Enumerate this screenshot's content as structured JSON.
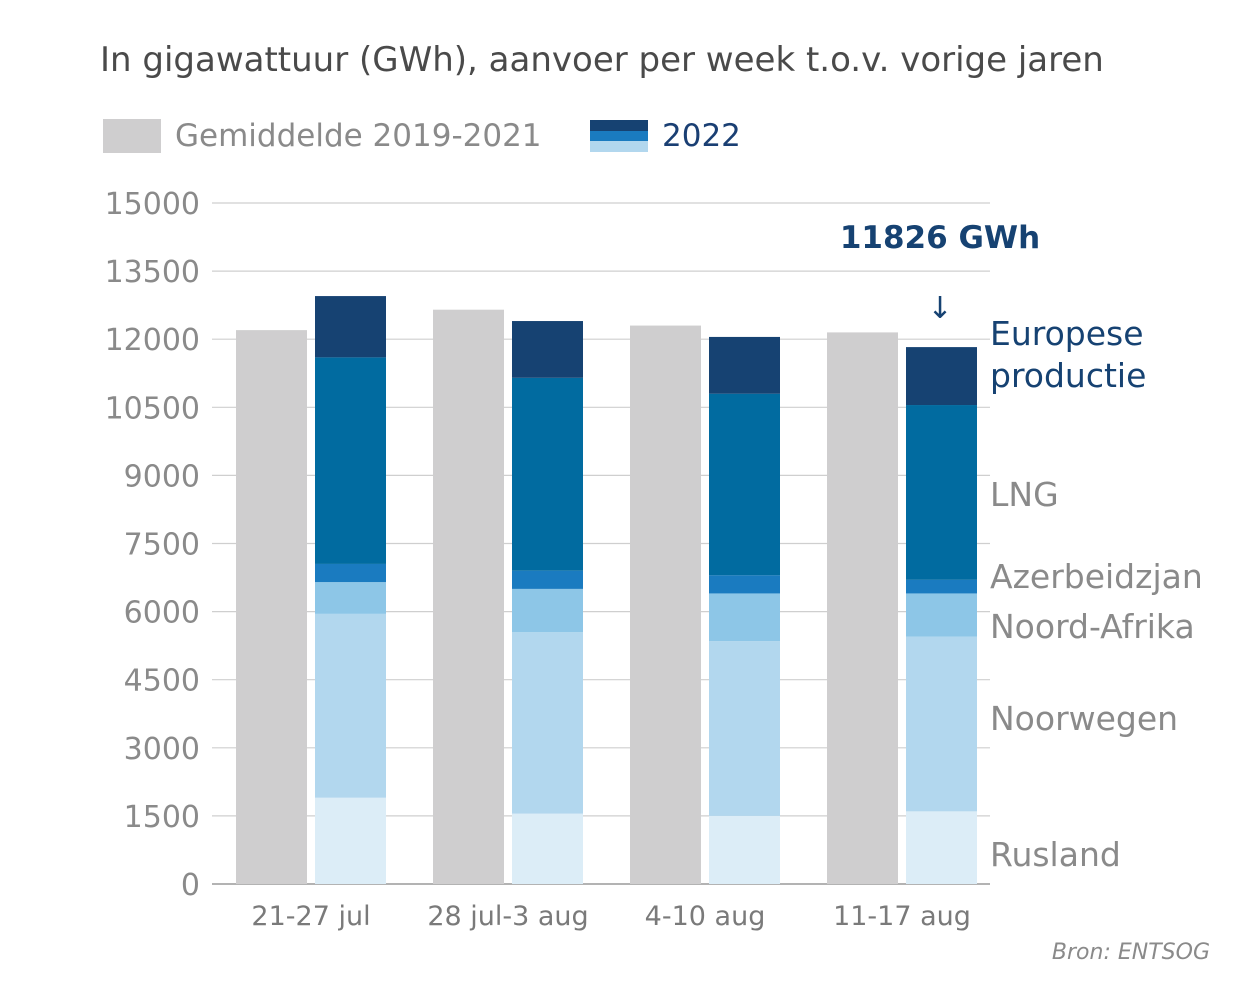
{
  "title": "In gigawattuur (GWh), aanvoer per week t.o.v. vorige jaren",
  "legend": {
    "avg_label": "Gemiddelde 2019-2021",
    "y2022_label": "2022"
  },
  "source": "Bron: ENTSOG",
  "colors": {
    "average": "#cfcecf",
    "Rusland": "#dcedf7",
    "Noorwegen": "#b2d7ee",
    "Noord-Afrika": "#8dc6e7",
    "Azerbeidzjan": "#1a7bc0",
    "LNG": "#016ba0",
    "Europese productie": "#164272",
    "grid": "#cfcfcf"
  },
  "chart_data": {
    "type": "bar",
    "stacked": true,
    "categories": [
      "21-27 jul",
      "28 jul-3 aug",
      "4-10 aug",
      "11-17 aug"
    ],
    "ylim": [
      0,
      15000
    ],
    "yticks": [
      0,
      1500,
      3000,
      4500,
      6000,
      7500,
      9000,
      10500,
      12000,
      13500,
      15000
    ],
    "grid": true,
    "average_2019_2021": [
      12200,
      12650,
      12300,
      12150
    ],
    "series_2022": [
      {
        "name": "Rusland",
        "values": [
          1900,
          1550,
          1500,
          1600
        ]
      },
      {
        "name": "Noorwegen",
        "values": [
          4050,
          4000,
          3850,
          3850
        ]
      },
      {
        "name": "Noord-Afrika",
        "values": [
          700,
          950,
          1050,
          950
        ]
      },
      {
        "name": "Azerbeidzjan",
        "values": [
          400,
          400,
          400,
          300
        ]
      },
      {
        "name": "LNG",
        "values": [
          4550,
          4250,
          4000,
          3850
        ]
      },
      {
        "name": "Europese productie",
        "values": [
          1350,
          1250,
          1250,
          1276
        ]
      }
    ],
    "annotation": "11826 GWh",
    "annotation_arrow": "↓",
    "segment_labels": [
      {
        "series": "Europese productie",
        "text": "Europese\nproductie"
      },
      {
        "series": "LNG",
        "text": "LNG"
      },
      {
        "series": "Azerbeidzjan",
        "text": "Azerbeidzjan"
      },
      {
        "series": "Noord-Afrika",
        "text": "Noord-Afrika"
      },
      {
        "series": "Noorwegen",
        "text": "Noorwegen"
      },
      {
        "series": "Rusland",
        "text": "Rusland"
      }
    ]
  }
}
